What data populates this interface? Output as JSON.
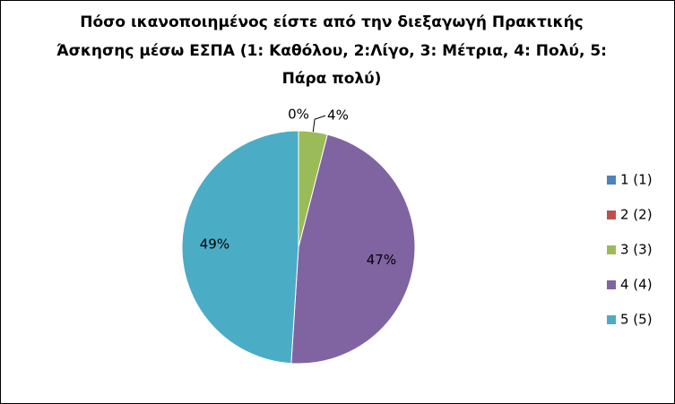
{
  "chart_data": {
    "type": "pie",
    "title": [
      "Πόσο ικανοποιημένος είστε από την διεξαγωγή Πρακτικής",
      "Άσκησης μέσω ΕΣΠΑ (1: Καθόλου, 2:Λίγο, 3: Μέτρια, 4: Πολύ, 5:",
      "Πάρα πολύ)"
    ],
    "categories": [
      "1 (1)",
      "2 (2)",
      "3 (3)",
      "4 (4)",
      "5 (5)"
    ],
    "values": [
      0,
      0,
      4,
      47,
      49
    ],
    "value_labels": [
      "0%",
      null,
      "4%",
      "47%",
      "49%"
    ],
    "colors": [
      "#4F81BD",
      "#C0504D",
      "#9BBB59",
      "#8064A2",
      "#4BACC6"
    ],
    "legend": "right"
  }
}
